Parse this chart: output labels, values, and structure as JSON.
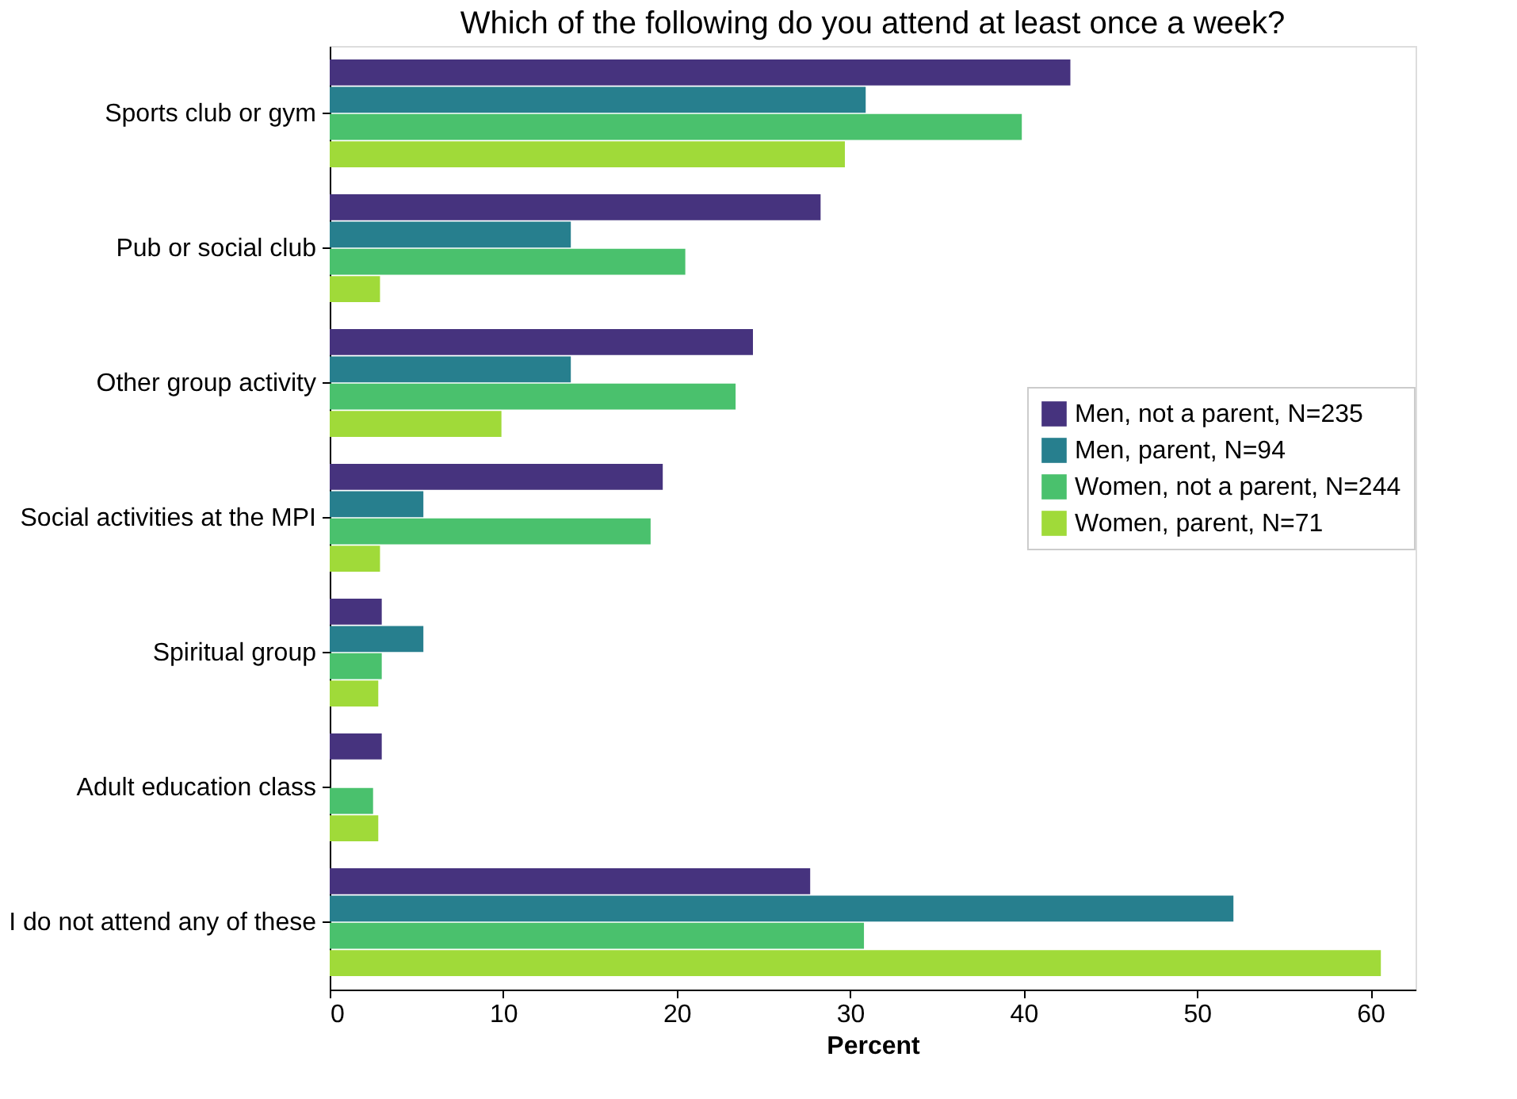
{
  "chart_data": {
    "type": "bar",
    "orientation": "horizontal",
    "title": "Which of the following do you attend at least once a week?",
    "xlabel": "Percent",
    "categories": [
      "Sports club or gym",
      "Pub or social club",
      "Other group activity",
      "Social activities at the MPI",
      "Spiritual group",
      "Adult education class",
      "I do not attend any of these"
    ],
    "series": [
      {
        "name": "Men, not a parent, N=235",
        "color": "#46337e",
        "values": [
          42.7,
          28.3,
          24.4,
          19.2,
          3.0,
          3.0,
          27.7
        ]
      },
      {
        "name": "Men, parent, N=94",
        "color": "#277f8e",
        "values": [
          30.9,
          13.9,
          13.9,
          5.4,
          5.4,
          0,
          52.1
        ]
      },
      {
        "name": "Women, not a parent, N=244",
        "color": "#4ac16d",
        "values": [
          39.9,
          20.5,
          23.4,
          18.5,
          3.0,
          2.5,
          30.8
        ]
      },
      {
        "name": "Women, parent, N=71",
        "color": "#a0da39",
        "values": [
          29.7,
          2.9,
          9.9,
          2.9,
          2.8,
          2.8,
          60.6
        ]
      }
    ],
    "xlim": [
      0,
      62.6
    ],
    "xticks": [
      0,
      10,
      20,
      30,
      40,
      50,
      60
    ],
    "grid": false,
    "legend": "right"
  }
}
